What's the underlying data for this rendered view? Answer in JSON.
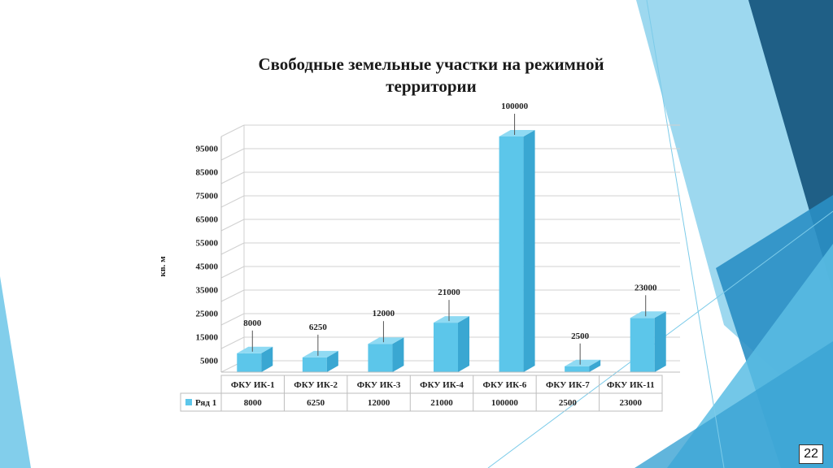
{
  "slide": {
    "page_number": "22",
    "colors": {
      "bar_front": "#5cc6ea",
      "bar_side": "#3aa7d2",
      "bar_top": "#8fdaf3",
      "deco_dark": "#1f5f86",
      "deco_mid": "#2a8fc4",
      "deco_light": "#5bbde4"
    }
  },
  "chart_data": {
    "type": "bar",
    "title": "Свободные земельные участки на режимной территории",
    "ylabel": "кв. м",
    "xlabel": "",
    "ylim": [
      0,
      100000
    ],
    "y_tick_labels": [
      "5000",
      "15000",
      "25000",
      "35000",
      "45000",
      "55000",
      "65000",
      "75000",
      "85000",
      "95000"
    ],
    "categories": [
      "ФКУ ИК-1",
      "ФКУ ИК-2",
      "ФКУ ИК-3",
      "ФКУ ИК-4",
      "ФКУ ИК-6",
      "ФКУ ИК-7",
      "ФКУ ИК-11"
    ],
    "series": [
      {
        "name": "Ряд 1",
        "values": [
          8000,
          6250,
          12000,
          21000,
          100000,
          2500,
          23000
        ]
      }
    ],
    "data_labels": [
      "8000",
      "6250",
      "12000",
      "21000",
      "100000",
      "2500",
      "23000"
    ],
    "data_table": true,
    "grid": true,
    "three_d": true
  }
}
